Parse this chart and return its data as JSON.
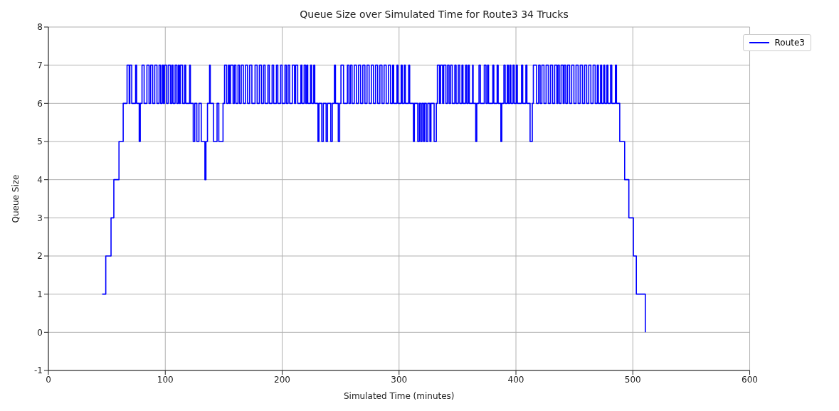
{
  "chart_data": {
    "type": "step",
    "title": "Queue Size over Simulated Time for Route3 34 Trucks",
    "xlabel": "Simulated Time (minutes)",
    "ylabel": "Queue Size",
    "xlim": [
      0,
      600
    ],
    "xticks": [
      0,
      100,
      200,
      300,
      400,
      500,
      600
    ],
    "ylim": [
      -1,
      8
    ],
    "yticks": [
      -1,
      0,
      1,
      2,
      3,
      4,
      5,
      6,
      7,
      8
    ],
    "grid": true,
    "legend": "top right",
    "x": [
      46,
      49.1,
      53.6,
      56,
      60.4,
      64,
      67.3,
      69.1,
      69.7,
      71.3,
      74.6,
      75.5,
      77.7,
      78.6,
      80.1,
      81.9,
      84.3,
      86.1,
      87.4,
      89.2,
      91,
      92.9,
      94.7,
      96,
      97.4,
      98.4,
      99.3,
      101.1,
      102.5,
      104.4,
      105.6,
      106.6,
      108.4,
      109.9,
      111.1,
      112,
      112.9,
      114.8,
      116.6,
      117.5,
      120.8,
      121.5,
      123.9,
      125.2,
      127,
      128.8,
      130.8,
      133.9,
      134.8,
      136.1,
      137.9,
      138.5,
      141.2,
      144.3,
      145.8,
      149.4,
      150.7,
      152.5,
      154,
      154.9,
      155.8,
      158,
      159.1,
      160.4,
      162.2,
      163.5,
      165,
      166.8,
      168.6,
      170.4,
      172.2,
      174.1,
      176.8,
      178.6,
      180.5,
      182.3,
      184.1,
      185.4,
      187.8,
      189,
      191.4,
      192.7,
      195.1,
      196.3,
      198.7,
      200,
      202.4,
      203.6,
      205.1,
      206.4,
      208.7,
      210.6,
      211.5,
      213.3,
      216,
      216.9,
      218.8,
      220.1,
      221.1,
      221.9,
      224.3,
      225.2,
      227,
      227.9,
      230.6,
      231.5,
      233.9,
      235.2,
      237.6,
      238.8,
      241.6,
      242.9,
      244.7,
      245.6,
      248,
      249.2,
      250.3,
      252.5,
      255.8,
      257.1,
      258.4,
      259.8,
      261.7,
      263.5,
      265.3,
      267.1,
      269,
      270.8,
      272.6,
      274.4,
      276.3,
      278.1,
      279.9,
      281.7,
      283.6,
      285.4,
      287.2,
      289,
      290.9,
      292.7,
      294.5,
      295.4,
      298.2,
      299.1,
      301.8,
      302.7,
      304.5,
      305.4,
      308.2,
      309.1,
      312.3,
      313.1,
      316,
      317.3,
      318.5,
      319.6,
      320.9,
      321.8,
      323.3,
      324.6,
      326.4,
      327.3,
      330,
      331.9,
      332.8,
      334.6,
      335.5,
      337.3,
      338.2,
      340.1,
      341.5,
      342.8,
      344.1,
      345.5,
      347.7,
      348.8,
      350.7,
      351.9,
      353.8,
      354.7,
      356.9,
      357.9,
      359.2,
      360.1,
      362.9,
      363.4,
      365.6,
      366.5,
      368.4,
      369.6,
      372.9,
      374.4,
      375.7,
      376.6,
      380.2,
      381.1,
      383.9,
      384.8,
      387.1,
      387.9,
      389.7,
      390.8,
      392.6,
      393.5,
      394.8,
      395.7,
      397.5,
      398.5,
      400.3,
      401.2,
      404.8,
      405.8,
      408.5,
      409.4,
      412.1,
      414,
      414.9,
      417.6,
      419.4,
      420.7,
      422.2,
      424,
      425.8,
      427.7,
      429.5,
      431.3,
      433.1,
      435,
      435.9,
      437.1,
      438.6,
      440.4,
      441.3,
      442.6,
      444.1,
      445.9,
      447.7,
      449.6,
      451.4,
      453.2,
      455,
      456.9,
      458.7,
      460.5,
      462.3,
      464.1,
      466,
      467.8,
      469.6,
      470.5,
      472.4,
      473.3,
      475.1,
      476,
      477.8,
      478.7,
      480.9,
      482,
      485.1,
      486,
      488.8,
      493,
      496.6,
      500.5,
      503,
      510.7
    ],
    "series": [
      {
        "name": "Route3",
        "color": "#0000ff",
        "values": [
          1,
          2,
          3,
          4,
          5,
          6,
          7,
          6,
          7,
          6,
          7,
          6,
          5,
          6,
          7,
          6,
          7,
          6,
          7,
          6,
          7,
          6,
          7,
          6,
          7,
          6,
          7,
          6,
          7,
          6,
          7,
          6,
          7,
          6,
          7,
          6,
          7,
          6,
          7,
          6,
          7,
          6,
          5,
          6,
          5,
          6,
          5,
          4,
          5,
          6,
          7,
          6,
          5,
          6,
          5,
          6,
          7,
          6,
          7,
          6,
          7,
          6,
          7,
          6,
          7,
          6,
          7,
          6,
          7,
          6,
          7,
          6,
          7,
          6,
          7,
          6,
          7,
          6,
          7,
          6,
          7,
          6,
          7,
          6,
          7,
          6,
          7,
          6,
          7,
          6,
          7,
          6,
          7,
          6,
          7,
          6,
          7,
          6,
          7,
          6,
          7,
          6,
          7,
          6,
          5,
          6,
          5,
          6,
          5,
          6,
          5,
          6,
          7,
          6,
          5,
          6,
          7,
          6,
          7,
          6,
          7,
          6,
          7,
          6,
          7,
          6,
          7,
          6,
          7,
          6,
          7,
          6,
          7,
          6,
          7,
          6,
          7,
          6,
          7,
          6,
          7,
          6,
          7,
          6,
          7,
          6,
          7,
          6,
          7,
          6,
          5,
          6,
          5,
          6,
          5,
          6,
          5,
          6,
          5,
          6,
          5,
          6,
          5,
          6,
          7,
          6,
          7,
          6,
          7,
          6,
          7,
          6,
          7,
          6,
          7,
          6,
          7,
          6,
          7,
          6,
          7,
          6,
          7,
          6,
          7,
          6,
          5,
          6,
          7,
          6,
          7,
          6,
          7,
          6,
          7,
          6,
          7,
          6,
          5,
          6,
          7,
          6,
          7,
          6,
          7,
          6,
          7,
          6,
          7,
          6,
          7,
          6,
          7,
          6,
          5,
          6,
          7,
          6,
          7,
          6,
          7,
          6,
          7,
          6,
          7,
          6,
          7,
          6,
          7,
          6,
          7,
          6,
          7,
          6,
          7,
          6,
          7,
          6,
          7,
          6,
          7,
          6,
          7,
          6,
          7,
          6,
          7,
          6,
          7,
          6,
          7,
          6,
          7,
          6,
          7,
          6,
          7,
          6,
          7,
          6,
          5,
          4,
          3,
          2,
          1,
          0
        ]
      }
    ]
  }
}
